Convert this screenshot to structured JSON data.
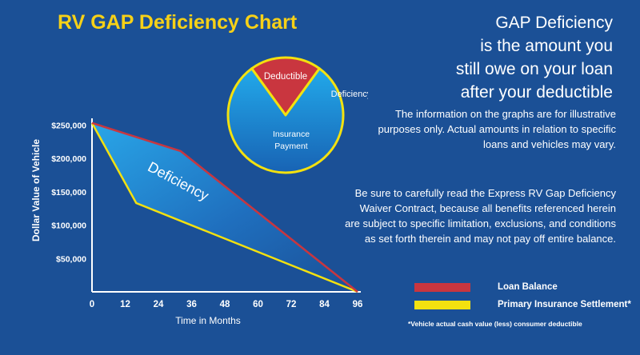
{
  "colors": {
    "background": "#1b5096",
    "title": "#f7d117",
    "loan_line": "#c9363f",
    "settlement_line": "#f3e10f",
    "pie_deductible": "#c9363f",
    "pie_payment": "#1e86d0",
    "text": "#ffffff"
  },
  "title": "RV GAP Deficiency Chart",
  "headline": {
    "line1": "GAP Deficiency",
    "line2": "is the amount you",
    "line3": "still owe on your loan",
    "line4": "after your deductible"
  },
  "disclaimer": "The information on the graphs are for illustrative purposes only. Actual amounts in relation to specific loans and vehicles may vary.",
  "contract_note": "Be sure to carefully read the Express RV Gap Deficiency Waiver Contract, because all benefits referenced herein are subject to specific limitation, exclusions, and conditions as set forth therein and may not pay off entire balance.",
  "pie": {
    "deductible_label": "Deductible",
    "deficiency_label": "Deficiency",
    "payment_label_line1": "Insurance",
    "payment_label_line2": "Payment"
  },
  "legend": {
    "loan": "Loan Balance",
    "settlement": "Primary Insurance Settlement*"
  },
  "footnote": "*Vehicle actual cash value (less) consumer deductible",
  "chart_data": [
    {
      "type": "line",
      "title": "RV GAP Deficiency Chart",
      "xlabel": "Time in Months",
      "ylabel": "Dollar Value of Vehicle",
      "x_ticks": [
        0,
        12,
        24,
        36,
        48,
        60,
        72,
        84,
        96
      ],
      "x_tick_labels": [
        "0",
        "12",
        "24",
        "36",
        "48",
        "60",
        "72",
        "84",
        "96"
      ],
      "y_ticks": [
        50000,
        100000,
        150000,
        200000,
        250000
      ],
      "y_tick_labels": [
        "$50,000",
        "$100,000",
        "$150,000",
        "$200,000",
        "$250,000"
      ],
      "xlim": [
        0,
        96
      ],
      "ylim": [
        0,
        260000
      ],
      "grid": false,
      "series": [
        {
          "name": "Loan Balance",
          "x": [
            0,
            32,
            96
          ],
          "y": [
            253000,
            211000,
            0
          ]
        },
        {
          "name": "Primary Insurance Settlement*",
          "x": [
            0,
            16,
            96
          ],
          "y": [
            253000,
            133000,
            0
          ]
        }
      ],
      "shaded_region_label": "Deficiency"
    },
    {
      "type": "pie",
      "labels": [
        "Deductible",
        "Insurance Payment"
      ],
      "values": [
        20,
        80
      ],
      "exploded_label": "Deficiency"
    }
  ]
}
